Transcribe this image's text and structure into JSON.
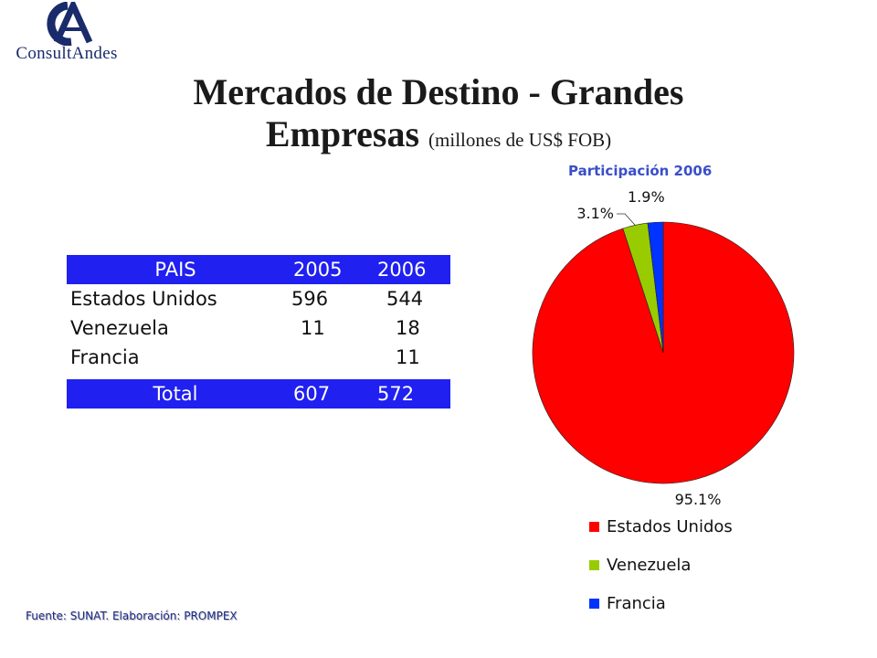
{
  "logo": {
    "letters": "CA",
    "text": "ConsultAndes"
  },
  "title": {
    "main": "Mercados de Destino - Grandes",
    "line2": "Empresas",
    "units": "(millones de US$ FOB)"
  },
  "table": {
    "headers": [
      "PAIS",
      "2005",
      "2006"
    ],
    "rows": [
      [
        "Estados Unidos",
        "596",
        "544"
      ],
      [
        "Venezuela",
        "11",
        "18"
      ],
      [
        "Francia",
        "",
        "11"
      ]
    ],
    "total": [
      "Total",
      "607",
      "572"
    ]
  },
  "chart_data": {
    "type": "pie",
    "title": "Participación 2006",
    "slices": [
      {
        "label": "Estados Unidos",
        "value": 95.1,
        "display": "95.1%",
        "color": "#ff0000"
      },
      {
        "label": "Venezuela",
        "value": 3.1,
        "display": "3.1%",
        "color": "#99cc00"
      },
      {
        "label": "Francia",
        "value": 1.9,
        "display": "1.9%",
        "color": "#0033ff"
      }
    ],
    "legend_position": "bottom"
  },
  "colors": {
    "table_header": "#2020f0",
    "chart_title": "#3a4fc9"
  },
  "source": "Fuente: SUNAT.  Elaboración: PROMPEX"
}
